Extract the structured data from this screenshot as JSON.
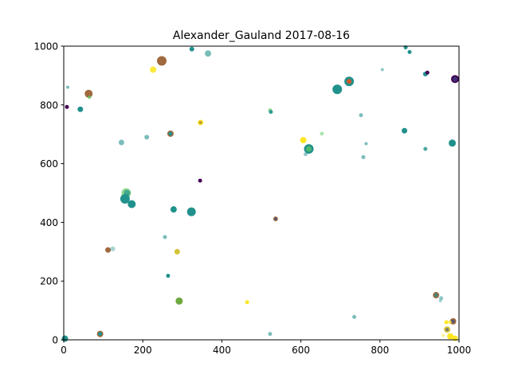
{
  "chart_data": {
    "type": "scatter",
    "title": "Alexander_Gauland    2017-08-16",
    "xlabel": "",
    "ylabel": "",
    "xlim": [
      0,
      1000
    ],
    "ylim": [
      0,
      1000
    ],
    "grid": false,
    "xticks": [
      "0",
      "200",
      "400",
      "600",
      "800",
      "1000"
    ],
    "yticks": [
      "0",
      "200",
      "400",
      "600",
      "800",
      "1000"
    ],
    "points": [
      {
        "x": 248,
        "y": 950,
        "color": "#a0693e",
        "r": 6,
        "a": 1.0
      },
      {
        "x": 226,
        "y": 920,
        "color": "#fde725",
        "r": 4,
        "a": 0.9
      },
      {
        "x": 324,
        "y": 990,
        "color": "#21918c",
        "r": 3,
        "a": 1.0
      },
      {
        "x": 365,
        "y": 975,
        "color": "#21918c",
        "r": 4,
        "a": 0.6
      },
      {
        "x": 63,
        "y": 838,
        "color": "#a0693e",
        "r": 5,
        "a": 1.0
      },
      {
        "x": 65,
        "y": 826,
        "color": "#5ec962",
        "r": 2,
        "a": 0.8
      },
      {
        "x": 10,
        "y": 860,
        "color": "#21918c",
        "r": 2,
        "a": 0.6
      },
      {
        "x": 8,
        "y": 793,
        "color": "#440154",
        "r": 2.5,
        "a": 1.0
      },
      {
        "x": 42,
        "y": 785,
        "color": "#21918c",
        "r": 3.5,
        "a": 1.0
      },
      {
        "x": 146,
        "y": 672,
        "color": "#21918c",
        "r": 3.5,
        "a": 0.6
      },
      {
        "x": 210,
        "y": 690,
        "color": "#21918c",
        "r": 3,
        "a": 0.6
      },
      {
        "x": 270,
        "y": 702,
        "color": "#a0693e",
        "r": 4,
        "a": 1.0
      },
      {
        "x": 270,
        "y": 702,
        "color": "#21918c",
        "r": 2.5,
        "a": 1.0
      },
      {
        "x": 346,
        "y": 740,
        "color": "#fde725",
        "r": 3.5,
        "a": 1.0
      },
      {
        "x": 346,
        "y": 740,
        "color": "#a0693e",
        "r": 2,
        "a": 0.6
      },
      {
        "x": 158,
        "y": 500,
        "color": "#5ec962",
        "r": 6,
        "a": 0.7
      },
      {
        "x": 160,
        "y": 500,
        "color": "#21918c",
        "r": 4,
        "a": 0.7
      },
      {
        "x": 155,
        "y": 480,
        "color": "#21918c",
        "r": 6,
        "a": 1.0
      },
      {
        "x": 172,
        "y": 462,
        "color": "#21918c",
        "r": 5,
        "a": 1.0
      },
      {
        "x": 278,
        "y": 444,
        "color": "#21918c",
        "r": 4,
        "a": 1.0
      },
      {
        "x": 323,
        "y": 436,
        "color": "#21918c",
        "r": 5.5,
        "a": 1.0
      },
      {
        "x": 345,
        "y": 542,
        "color": "#440154",
        "r": 2.5,
        "a": 1.0
      },
      {
        "x": 536,
        "y": 412,
        "color": "#a0693e",
        "r": 3,
        "a": 1.0
      },
      {
        "x": 536,
        "y": 412,
        "color": "#3b528b",
        "r": 1.5,
        "a": 1.0
      },
      {
        "x": 256,
        "y": 350,
        "color": "#21918c",
        "r": 2.5,
        "a": 0.6
      },
      {
        "x": 112,
        "y": 306,
        "color": "#a0693e",
        "r": 3.5,
        "a": 1.0
      },
      {
        "x": 124,
        "y": 310,
        "color": "#21918c",
        "r": 3,
        "a": 0.4
      },
      {
        "x": 287,
        "y": 300,
        "color": "#d4c23a",
        "r": 3.5,
        "a": 1.0
      },
      {
        "x": 264,
        "y": 218,
        "color": "#21918c",
        "r": 2.5,
        "a": 1.0
      },
      {
        "x": 292,
        "y": 132,
        "color": "#6ca83d",
        "r": 4.5,
        "a": 1.0
      },
      {
        "x": 464,
        "y": 128,
        "color": "#fde725",
        "r": 2.5,
        "a": 1.0
      },
      {
        "x": 92,
        "y": 20,
        "color": "#a0693e",
        "r": 4,
        "a": 1.0
      },
      {
        "x": 92,
        "y": 20,
        "color": "#21918c",
        "r": 2.5,
        "a": 1.0
      },
      {
        "x": 3,
        "y": 4,
        "color": "#21918c",
        "r": 4,
        "a": 1.0
      },
      {
        "x": 522,
        "y": 20,
        "color": "#21918c",
        "r": 2.5,
        "a": 0.6
      },
      {
        "x": 522,
        "y": 782,
        "color": "#5ec962",
        "r": 2.5,
        "a": 0.6
      },
      {
        "x": 524,
        "y": 776,
        "color": "#21918c",
        "r": 2.5,
        "a": 0.9
      },
      {
        "x": 606,
        "y": 680,
        "color": "#fde725",
        "r": 4,
        "a": 1.0
      },
      {
        "x": 620,
        "y": 650,
        "color": "#21918c",
        "r": 6,
        "a": 1.0
      },
      {
        "x": 620,
        "y": 650,
        "color": "#5ec962",
        "r": 3.5,
        "a": 0.7
      },
      {
        "x": 612,
        "y": 632,
        "color": "#21918c",
        "r": 2.5,
        "a": 0.5
      },
      {
        "x": 653,
        "y": 702,
        "color": "#5ec962",
        "r": 2.5,
        "a": 0.5
      },
      {
        "x": 692,
        "y": 853,
        "color": "#21918c",
        "r": 6,
        "a": 1.0
      },
      {
        "x": 722,
        "y": 880,
        "color": "#21918c",
        "r": 6,
        "a": 1.0
      },
      {
        "x": 722,
        "y": 880,
        "color": "#d1562b",
        "r": 3,
        "a": 1.0
      },
      {
        "x": 752,
        "y": 765,
        "color": "#21918c",
        "r": 2.5,
        "a": 0.6
      },
      {
        "x": 806,
        "y": 920,
        "color": "#21918c",
        "r": 2,
        "a": 0.5
      },
      {
        "x": 865,
        "y": 996,
        "color": "#21918c",
        "r": 2.5,
        "a": 1.0
      },
      {
        "x": 875,
        "y": 980,
        "color": "#21918c",
        "r": 2.5,
        "a": 1.0
      },
      {
        "x": 862,
        "y": 712,
        "color": "#21918c",
        "r": 3.5,
        "a": 1.0
      },
      {
        "x": 758,
        "y": 622,
        "color": "#21918c",
        "r": 2.5,
        "a": 0.6
      },
      {
        "x": 765,
        "y": 668,
        "color": "#21918c",
        "r": 2,
        "a": 0.6
      },
      {
        "x": 915,
        "y": 905,
        "color": "#21918c",
        "r": 3,
        "a": 1.0
      },
      {
        "x": 920,
        "y": 910,
        "color": "#440154",
        "r": 2.5,
        "a": 1.0
      },
      {
        "x": 990,
        "y": 888,
        "color": "#440154",
        "r": 5,
        "a": 1.0
      },
      {
        "x": 990,
        "y": 888,
        "color": "#3b528b",
        "r": 3,
        "a": 0.6
      },
      {
        "x": 915,
        "y": 650,
        "color": "#21918c",
        "r": 2.5,
        "a": 0.8
      },
      {
        "x": 983,
        "y": 670,
        "color": "#21918c",
        "r": 4.5,
        "a": 1.0
      },
      {
        "x": 735,
        "y": 78,
        "color": "#21918c",
        "r": 2.5,
        "a": 0.6
      },
      {
        "x": 942,
        "y": 152,
        "color": "#a0693e",
        "r": 4,
        "a": 1.0
      },
      {
        "x": 942,
        "y": 152,
        "color": "#21918c",
        "r": 2.5,
        "a": 0.7
      },
      {
        "x": 955,
        "y": 142,
        "color": "#21918c",
        "r": 2.5,
        "a": 0.5
      },
      {
        "x": 953,
        "y": 133,
        "color": "#21918c",
        "r": 2,
        "a": 0.4
      },
      {
        "x": 985,
        "y": 63,
        "color": "#a0693e",
        "r": 4,
        "a": 1.0
      },
      {
        "x": 985,
        "y": 63,
        "color": "#3b528b",
        "r": 2,
        "a": 0.8
      },
      {
        "x": 968,
        "y": 60,
        "color": "#fde725",
        "r": 2.5,
        "a": 1.0
      },
      {
        "x": 977,
        "y": 60,
        "color": "#fde725",
        "r": 2,
        "a": 0.8
      },
      {
        "x": 970,
        "y": 35,
        "color": "#d4c23a",
        "r": 4,
        "a": 1.0
      },
      {
        "x": 970,
        "y": 35,
        "color": "#3b528b",
        "r": 2,
        "a": 0.6
      },
      {
        "x": 960,
        "y": 15,
        "color": "#fde725",
        "r": 2,
        "a": 0.5
      },
      {
        "x": 978,
        "y": 12,
        "color": "#fde725",
        "r": 4,
        "a": 1.0
      },
      {
        "x": 990,
        "y": 5,
        "color": "#fde725",
        "r": 3.5,
        "a": 1.0
      }
    ]
  }
}
